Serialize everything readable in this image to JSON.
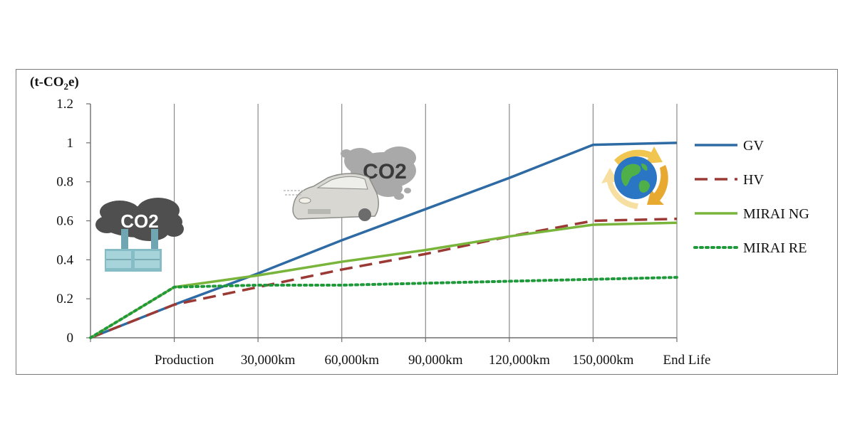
{
  "chart_data": {
    "type": "line",
    "ylabel": "(t-CO2e)",
    "ylabel_parts": {
      "prefix": "(t-CO",
      "sub": "2",
      "suffix": "e)"
    },
    "categories": [
      "",
      "Production",
      "30,000km",
      "60,000km",
      "90,000km",
      "120,000km",
      "150,000km",
      "End Life"
    ],
    "ylim": [
      0,
      1.2
    ],
    "yticks": [
      "0",
      "0.2",
      "0.4",
      "0.6",
      "0.8",
      "1",
      "1.2"
    ],
    "grid": "vertical",
    "legend_position": "right",
    "series": [
      {
        "name": "GV",
        "color": "#2e6aa3",
        "style": "solid",
        "values": [
          0,
          0.17,
          0.33,
          0.5,
          0.66,
          0.82,
          0.99,
          1.0
        ]
      },
      {
        "name": "HV",
        "color": "#9b3a35",
        "style": "dashed",
        "values": [
          0,
          0.17,
          0.26,
          0.35,
          0.43,
          0.52,
          0.6,
          0.61
        ]
      },
      {
        "name": "MIRAI NG",
        "color": "#79b43b",
        "style": "solid",
        "values": [
          0,
          0.26,
          0.32,
          0.39,
          0.45,
          0.52,
          0.58,
          0.59
        ]
      },
      {
        "name": "MIRAI RE",
        "color": "#1f9a3a",
        "style": "dotted",
        "values": [
          0,
          0.26,
          0.27,
          0.27,
          0.28,
          0.29,
          0.3,
          0.31
        ]
      }
    ],
    "annotations": [
      {
        "name": "factory-co2-illustration",
        "text": "CO2"
      },
      {
        "name": "car-co2-illustration",
        "text": "CO2"
      },
      {
        "name": "earth-recycle-illustration"
      }
    ]
  }
}
